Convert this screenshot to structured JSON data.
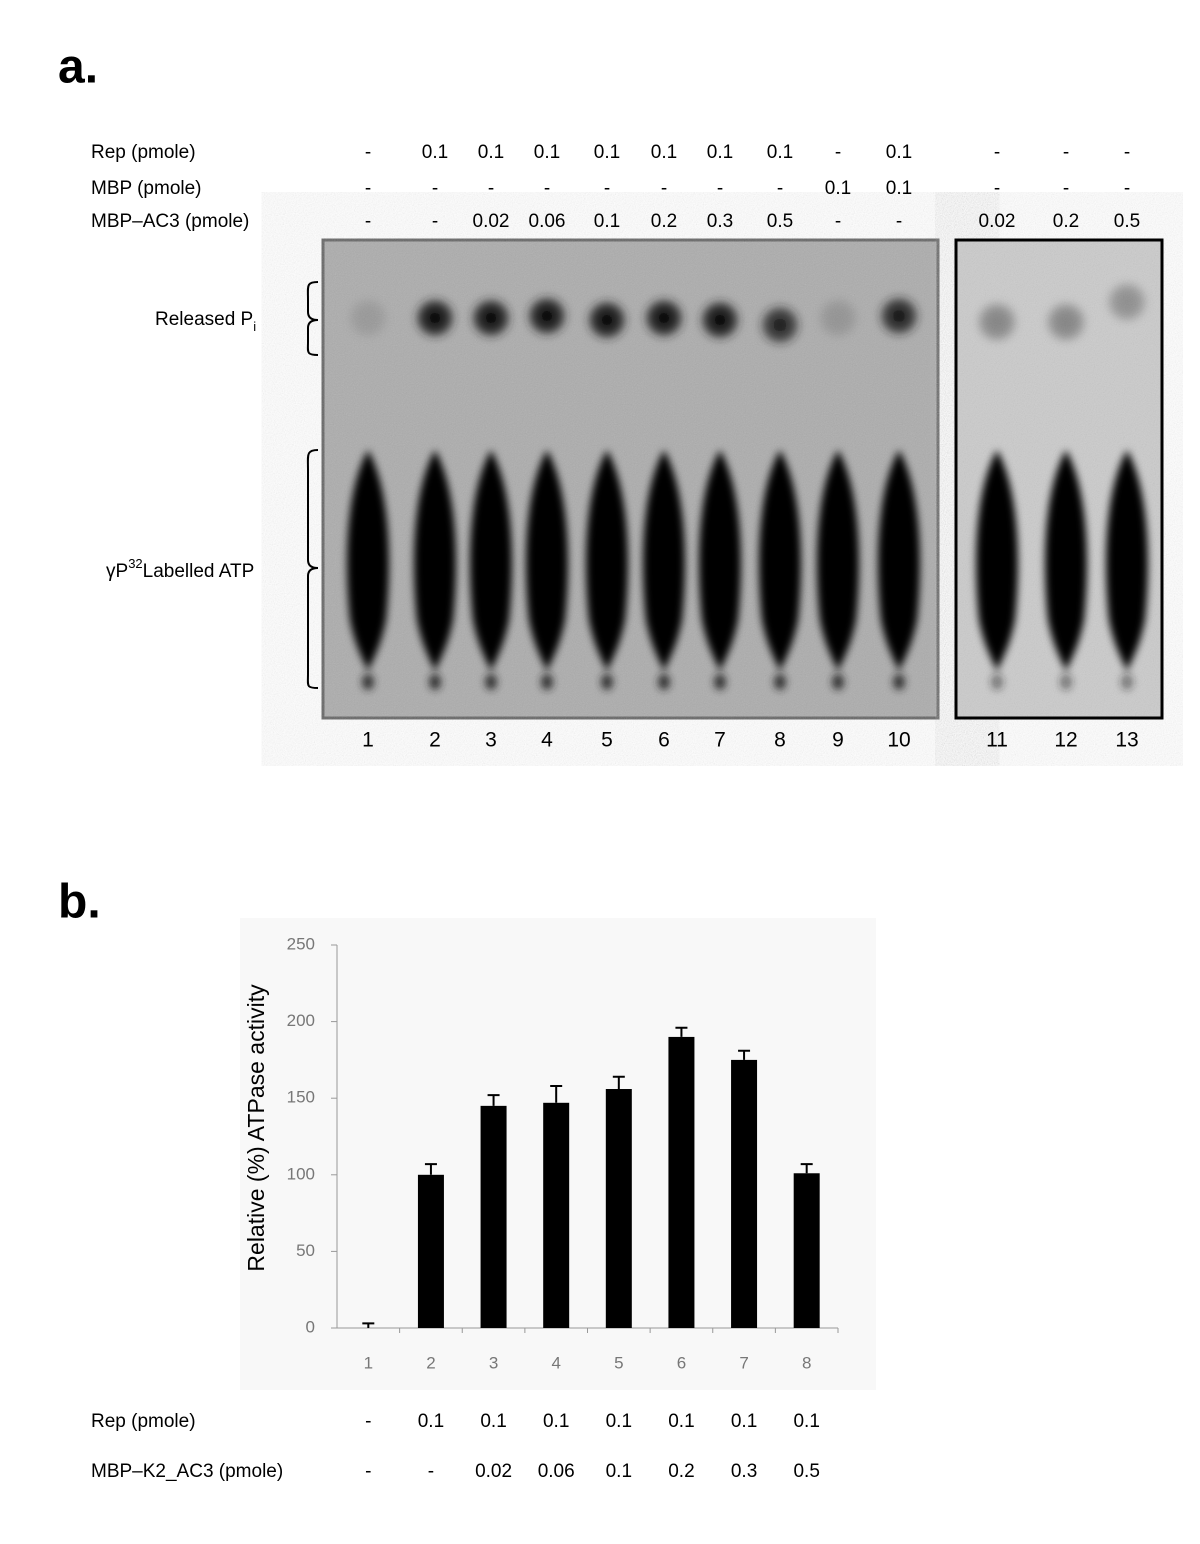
{
  "panel_a": {
    "label": "a.",
    "conditions": [
      {
        "label": "Rep  (pmole)",
        "values": [
          "-",
          "0.1",
          "0.1",
          "0.1",
          "0.1",
          "0.1",
          "0.1",
          "0.1",
          "-",
          "0.1",
          "-",
          "-",
          "-"
        ]
      },
      {
        "label": "MBP (pmole)",
        "values": [
          "-",
          "-",
          "-",
          "-",
          "-",
          "-",
          "-",
          "-",
          "0.1",
          "0.1",
          "-",
          "-",
          "-"
        ]
      },
      {
        "label": "MBP–AC3 (pmole)",
        "values": [
          "-",
          "-",
          "0.02",
          "0.06",
          "0.1",
          "0.2",
          "0.3",
          "0.5",
          "-",
          "-",
          "0.02",
          "0.2",
          "0.5"
        ]
      }
    ],
    "lanes": [
      "1",
      "2",
      "3",
      "4",
      "5",
      "6",
      "7",
      "8",
      "9",
      "10",
      "11",
      "12",
      "13"
    ],
    "released_label": "Released P",
    "released_sub": "i",
    "atp_prefix": "γP",
    "atp_sup": "32",
    "atp_label": "Labelled ATP"
  },
  "panel_b": {
    "label": "b.",
    "conditions": [
      {
        "label": "Rep (pmole)",
        "values": [
          "-",
          "0.1",
          "0.1",
          "0.1",
          "0.1",
          "0.1",
          "0.1",
          "0.1"
        ]
      },
      {
        "label": "MBP–K2_AC3 (pmole)",
        "values": [
          "-",
          "-",
          "0.02",
          "0.06",
          "0.1",
          "0.2",
          "0.3",
          "0.5"
        ]
      }
    ]
  },
  "chart_data": {
    "type": "bar",
    "y_label": "Relative (%) ATPase activity",
    "categories": [
      "1",
      "2",
      "3",
      "4",
      "5",
      "6",
      "7",
      "8"
    ],
    "values": [
      0,
      100,
      145,
      147,
      156,
      190,
      175,
      101
    ],
    "errors": [
      3,
      7,
      7,
      11,
      8,
      6,
      6,
      6
    ],
    "color": "#000000",
    "ylim": [
      0,
      250
    ],
    "yticks": [
      0,
      50,
      100,
      150,
      200,
      250
    ]
  }
}
